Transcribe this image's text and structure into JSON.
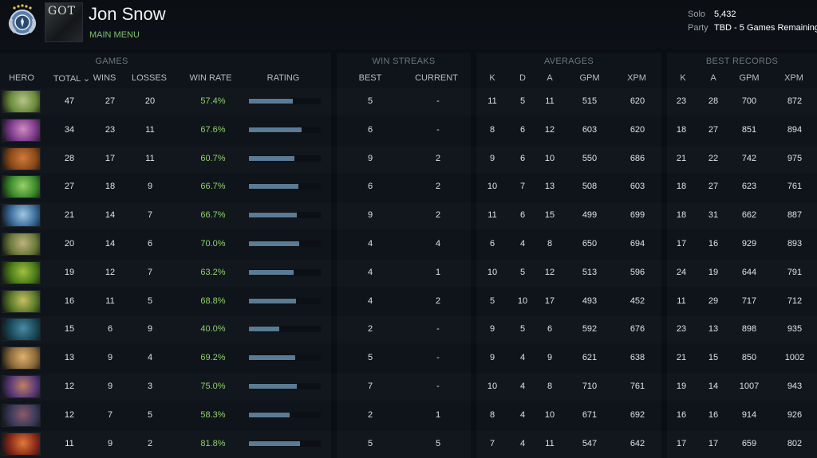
{
  "player": {
    "name": "Jon Snow",
    "main_menu": "MAIN MENU",
    "avatar_text": "GOT"
  },
  "mmr": {
    "solo_label": "Solo",
    "solo_value": "5,432",
    "party_label": "Party",
    "party_value": "TBD - 5 Games Remaining"
  },
  "groups": {
    "games": "GAMES",
    "win_streaks": "WIN STREAKS",
    "averages": "AVERAGES",
    "best_records": "BEST RECORDS"
  },
  "columns": {
    "hero": "HERO",
    "total": "TOTAL ⌄",
    "wins": "WINS",
    "losses": "LOSSES",
    "win_rate": "WIN RATE",
    "rating": "RATING",
    "best": "BEST",
    "current": "CURRENT",
    "k": "K",
    "d": "D",
    "a": "A",
    "gpm": "GPM",
    "xpm": "XPM",
    "rec_k": "K",
    "rec_a": "A",
    "rec_gpm": "GPM",
    "rec_xpm": "XPM"
  },
  "colors": {
    "win_rate_text": "#8fd06a",
    "rating_bar": "#5a7b93",
    "main_menu": "#7dc26a"
  },
  "rows": [
    {
      "hero_colors": [
        "#6a8a3a",
        "#b6c48a"
      ],
      "total": "47",
      "wins": "27",
      "losses": "20",
      "win_rate": "57.4%",
      "rating": 0.61,
      "best": "5",
      "current": "-",
      "k": "11",
      "d": "5",
      "a": "11",
      "gpm": "515",
      "xpm": "620",
      "rk": "23",
      "ra": "28",
      "rgpm": "700",
      "rxpm": "872"
    },
    {
      "hero_colors": [
        "#7a3a8a",
        "#d08ac0"
      ],
      "total": "34",
      "wins": "23",
      "losses": "11",
      "win_rate": "67.6%",
      "rating": 0.73,
      "best": "6",
      "current": "-",
      "k": "8",
      "d": "6",
      "a": "12",
      "gpm": "603",
      "xpm": "620",
      "rk": "18",
      "ra": "27",
      "rgpm": "851",
      "rxpm": "894"
    },
    {
      "hero_colors": [
        "#8a4a1a",
        "#d07a3a"
      ],
      "total": "28",
      "wins": "17",
      "losses": "11",
      "win_rate": "60.7%",
      "rating": 0.63,
      "best": "9",
      "current": "2",
      "k": "9",
      "d": "6",
      "a": "10",
      "gpm": "550",
      "xpm": "686",
      "rk": "21",
      "ra": "22",
      "rgpm": "742",
      "rxpm": "975"
    },
    {
      "hero_colors": [
        "#3a8a2a",
        "#9ad06a"
      ],
      "total": "27",
      "wins": "18",
      "losses": "9",
      "win_rate": "66.7%",
      "rating": 0.69,
      "best": "6",
      "current": "2",
      "k": "10",
      "d": "7",
      "a": "13",
      "gpm": "508",
      "xpm": "603",
      "rk": "18",
      "ra": "27",
      "rgpm": "623",
      "rxpm": "761"
    },
    {
      "hero_colors": [
        "#3a6a9a",
        "#a0c8e0"
      ],
      "total": "21",
      "wins": "14",
      "losses": "7",
      "win_rate": "66.7%",
      "rating": 0.67,
      "best": "9",
      "current": "2",
      "k": "11",
      "d": "6",
      "a": "15",
      "gpm": "499",
      "xpm": "699",
      "rk": "18",
      "ra": "31",
      "rgpm": "662",
      "rxpm": "887"
    },
    {
      "hero_colors": [
        "#6a7a3a",
        "#c0b080"
      ],
      "total": "20",
      "wins": "14",
      "losses": "6",
      "win_rate": "70.0%",
      "rating": 0.7,
      "best": "4",
      "current": "4",
      "k": "6",
      "d": "4",
      "a": "8",
      "gpm": "650",
      "xpm": "694",
      "rk": "17",
      "ra": "16",
      "rgpm": "929",
      "rxpm": "893"
    },
    {
      "hero_colors": [
        "#4a7a1a",
        "#a0c040"
      ],
      "total": "19",
      "wins": "12",
      "losses": "7",
      "win_rate": "63.2%",
      "rating": 0.62,
      "best": "4",
      "current": "1",
      "k": "10",
      "d": "5",
      "a": "12",
      "gpm": "513",
      "xpm": "596",
      "rk": "24",
      "ra": "19",
      "rgpm": "644",
      "rxpm": "791"
    },
    {
      "hero_colors": [
        "#5a7a2a",
        "#c8c060"
      ],
      "total": "16",
      "wins": "11",
      "losses": "5",
      "win_rate": "68.8%",
      "rating": 0.65,
      "best": "4",
      "current": "2",
      "k": "5",
      "d": "10",
      "a": "17",
      "gpm": "493",
      "xpm": "452",
      "rk": "11",
      "ra": "29",
      "rgpm": "717",
      "rxpm": "712"
    },
    {
      "hero_colors": [
        "#1a4a5a",
        "#4a8aa0"
      ],
      "total": "15",
      "wins": "6",
      "losses": "9",
      "win_rate": "40.0%",
      "rating": 0.42,
      "best": "2",
      "current": "-",
      "k": "9",
      "d": "5",
      "a": "6",
      "gpm": "592",
      "xpm": "676",
      "rk": "23",
      "ra": "13",
      "rgpm": "898",
      "rxpm": "935"
    },
    {
      "hero_colors": [
        "#8a6a3a",
        "#e0b070"
      ],
      "total": "13",
      "wins": "9",
      "losses": "4",
      "win_rate": "69.2%",
      "rating": 0.64,
      "best": "5",
      "current": "-",
      "k": "9",
      "d": "4",
      "a": "9",
      "gpm": "621",
      "xpm": "638",
      "rk": "21",
      "ra": "15",
      "rgpm": "850",
      "rxpm": "1002"
    },
    {
      "hero_colors": [
        "#5a3a7a",
        "#c08060"
      ],
      "total": "12",
      "wins": "9",
      "losses": "3",
      "win_rate": "75.0%",
      "rating": 0.67,
      "best": "7",
      "current": "-",
      "k": "10",
      "d": "4",
      "a": "8",
      "gpm": "710",
      "xpm": "761",
      "rk": "19",
      "ra": "14",
      "rgpm": "1007",
      "rxpm": "943"
    },
    {
      "hero_colors": [
        "#3a3a5a",
        "#8a5a6a"
      ],
      "total": "12",
      "wins": "7",
      "losses": "5",
      "win_rate": "58.3%",
      "rating": 0.57,
      "best": "2",
      "current": "1",
      "k": "8",
      "d": "4",
      "a": "10",
      "gpm": "671",
      "xpm": "692",
      "rk": "16",
      "ra": "16",
      "rgpm": "914",
      "rxpm": "926"
    },
    {
      "hero_colors": [
        "#8a2a1a",
        "#e07a3a"
      ],
      "total": "11",
      "wins": "9",
      "losses": "2",
      "win_rate": "81.8%",
      "rating": 0.71,
      "best": "5",
      "current": "5",
      "k": "7",
      "d": "4",
      "a": "11",
      "gpm": "547",
      "xpm": "642",
      "rk": "17",
      "ra": "17",
      "rgpm": "659",
      "rxpm": "802"
    }
  ]
}
